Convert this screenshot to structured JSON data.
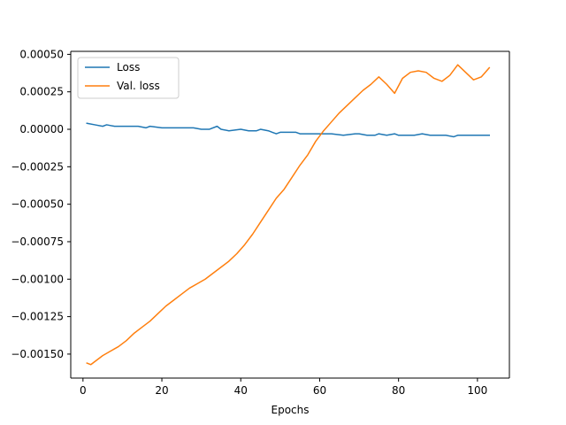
{
  "chart_data": {
    "type": "line",
    "title": "",
    "xlabel": "Epochs",
    "ylabel": "",
    "xlim": [
      -3.1,
      108.1
    ],
    "ylim": [
      -0.00166,
      0.00052
    ],
    "xticks": [
      0,
      20,
      40,
      60,
      80,
      100
    ],
    "yticks": [
      -0.0015,
      -0.00125,
      -0.001,
      -0.00075,
      -0.0005,
      -0.00025,
      0,
      0.00025,
      0.0005
    ],
    "ytick_labels": [
      "−0.00150",
      "−0.00125",
      "−0.00100",
      "−0.00075",
      "−0.00050",
      "−0.00025",
      "0.00000",
      "0.00025",
      "0.00050"
    ],
    "xtick_labels": [
      "0",
      "20",
      "40",
      "60",
      "80",
      "100"
    ],
    "grid": false,
    "legend_position": "top-left",
    "series": [
      {
        "name": "Loss",
        "color": "#1f77b4",
        "x": [
          1,
          3,
          5,
          6,
          8,
          10,
          12,
          14,
          16,
          17,
          20,
          22,
          25,
          28,
          30,
          32,
          34,
          35,
          37,
          40,
          42,
          44,
          45,
          47,
          48,
          49,
          50,
          52,
          54,
          55,
          57,
          60,
          63,
          66,
          69,
          70,
          72,
          74,
          75,
          77,
          79,
          80,
          82,
          84,
          86,
          88,
          90,
          92,
          94,
          95,
          98,
          100,
          102,
          103
        ],
        "y": [
          4e-05,
          3e-05,
          2e-05,
          3e-05,
          2e-05,
          2e-05,
          2e-05,
          2e-05,
          1e-05,
          2e-05,
          1e-05,
          1e-05,
          1e-05,
          1e-05,
          0.0,
          0.0,
          2e-05,
          0.0,
          -1e-05,
          0.0,
          -1e-05,
          -1e-05,
          0.0,
          -1e-05,
          -2e-05,
          -3e-05,
          -2e-05,
          -2e-05,
          -2e-05,
          -3e-05,
          -3e-05,
          -3e-05,
          -3e-05,
          -4e-05,
          -3e-05,
          -3e-05,
          -4e-05,
          -4e-05,
          -3e-05,
          -4e-05,
          -3e-05,
          -4e-05,
          -4e-05,
          -4e-05,
          -3e-05,
          -4e-05,
          -4e-05,
          -4e-05,
          -5e-05,
          -4e-05,
          -4e-05,
          -4e-05,
          -4e-05,
          -4e-05
        ]
      },
      {
        "name": "Val. loss",
        "color": "#ff7f0e",
        "x": [
          1,
          2,
          3,
          5,
          7,
          9,
          11,
          13,
          15,
          17,
          19,
          21,
          23,
          25,
          27,
          29,
          31,
          33,
          35,
          37,
          39,
          41,
          43,
          45,
          47,
          49,
          51,
          53,
          55,
          57,
          59,
          61,
          63,
          65,
          67,
          69,
          71,
          73,
          75,
          77,
          79,
          81,
          83,
          85,
          87,
          89,
          91,
          93,
          95,
          97,
          99,
          101,
          103
        ],
        "y": [
          -0.00156,
          -0.00157,
          -0.00155,
          -0.00151,
          -0.00148,
          -0.00145,
          -0.00141,
          -0.00136,
          -0.00132,
          -0.00128,
          -0.00123,
          -0.00118,
          -0.00114,
          -0.0011,
          -0.00106,
          -0.00103,
          -0.001,
          -0.00096,
          -0.00092,
          -0.00088,
          -0.00083,
          -0.00077,
          -0.0007,
          -0.00062,
          -0.00054,
          -0.00046,
          -0.0004,
          -0.00032,
          -0.00024,
          -0.00017,
          -8e-05,
          -1e-05,
          5e-05,
          0.00011,
          0.00016,
          0.00021,
          0.00026,
          0.0003,
          0.00035,
          0.0003,
          0.00024,
          0.00034,
          0.00038,
          0.00039,
          0.00038,
          0.00034,
          0.00032,
          0.00036,
          0.00043,
          0.00038,
          0.00033,
          0.00035,
          0.00041
        ]
      }
    ]
  }
}
